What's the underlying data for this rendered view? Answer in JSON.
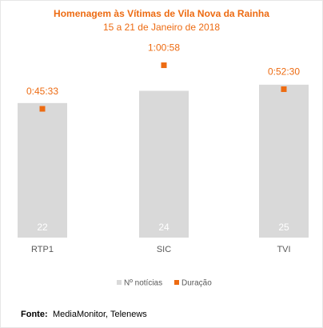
{
  "chart_data": {
    "type": "bar",
    "title": "Homenagem às Vítimas de Vila Nova da Rainha",
    "subtitle": "15 a 21 de Janeiro de 2018",
    "categories": [
      "RTP1",
      "SIC",
      "TVI"
    ],
    "series": [
      {
        "name": "Nº notícias",
        "type": "bar",
        "color": "#d9d9d9",
        "values": [
          22,
          24,
          25
        ]
      },
      {
        "name": "Duração",
        "type": "point",
        "axis": "y2",
        "color": "#ed6b12",
        "values": [
          2733,
          3658,
          3150
        ],
        "value_labels": [
          "0:45:33",
          "1:00:58",
          "0:52:30"
        ]
      }
    ],
    "ylim": [
      0,
      31
    ],
    "y2lim": [
      0,
      4024
    ],
    "source_label": "Fonte:",
    "source": "MediaMonitor, Telenews"
  }
}
